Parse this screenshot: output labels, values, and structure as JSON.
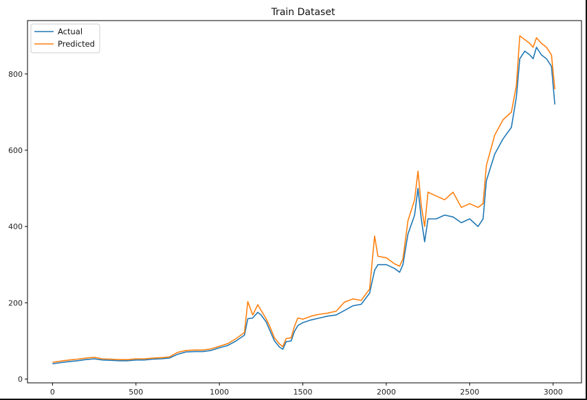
{
  "chart_data": {
    "type": "line",
    "title": "Train Dataset",
    "xlabel": "",
    "ylabel": "",
    "xlim": [
      -150,
      3170
    ],
    "ylim": [
      -10,
      940
    ],
    "xticks": [
      0,
      500,
      1000,
      1500,
      2000,
      2500,
      3000
    ],
    "yticks": [
      0,
      200,
      400,
      600,
      800
    ],
    "grid": false,
    "legend": {
      "placement": "top-left"
    },
    "series": [
      {
        "name": "Actual",
        "color": "#1f77b4",
        "x": [
          0,
          50,
          100,
          150,
          200,
          250,
          300,
          350,
          400,
          450,
          500,
          550,
          600,
          650,
          700,
          750,
          800,
          850,
          900,
          950,
          1000,
          1050,
          1100,
          1150,
          1170,
          1200,
          1230,
          1250,
          1280,
          1300,
          1330,
          1360,
          1380,
          1400,
          1430,
          1450,
          1470,
          1500,
          1550,
          1600,
          1650,
          1700,
          1750,
          1800,
          1850,
          1900,
          1930,
          1950,
          2000,
          2050,
          2080,
          2100,
          2130,
          2170,
          2190,
          2210,
          2230,
          2250,
          2300,
          2350,
          2400,
          2450,
          2500,
          2550,
          2580,
          2600,
          2650,
          2700,
          2750,
          2780,
          2800,
          2830,
          2860,
          2880,
          2900,
          2930,
          2960,
          2990,
          3010
        ],
        "values": [
          40,
          43,
          46,
          48,
          51,
          53,
          50,
          49,
          48,
          48,
          50,
          50,
          52,
          53,
          55,
          65,
          71,
          72,
          72,
          75,
          82,
          88,
          100,
          115,
          158,
          160,
          175,
          168,
          150,
          130,
          100,
          84,
          78,
          98,
          100,
          125,
          140,
          148,
          155,
          160,
          165,
          168,
          180,
          192,
          196,
          225,
          285,
          300,
          300,
          290,
          280,
          300,
          380,
          430,
          500,
          420,
          360,
          420,
          420,
          430,
          425,
          410,
          420,
          400,
          420,
          520,
          590,
          630,
          660,
          740,
          840,
          860,
          850,
          840,
          870,
          850,
          840,
          820,
          720
        ]
      },
      {
        "name": "Predicted",
        "color": "#ff7f0e",
        "x": [
          0,
          50,
          100,
          150,
          200,
          250,
          300,
          350,
          400,
          450,
          500,
          550,
          600,
          650,
          700,
          750,
          800,
          850,
          900,
          950,
          1000,
          1050,
          1100,
          1150,
          1170,
          1200,
          1230,
          1250,
          1280,
          1300,
          1330,
          1360,
          1380,
          1400,
          1430,
          1450,
          1470,
          1500,
          1550,
          1600,
          1650,
          1700,
          1750,
          1800,
          1850,
          1900,
          1930,
          1950,
          2000,
          2050,
          2080,
          2100,
          2130,
          2170,
          2190,
          2210,
          2230,
          2250,
          2300,
          2350,
          2400,
          2450,
          2500,
          2550,
          2580,
          2600,
          2650,
          2700,
          2750,
          2780,
          2800,
          2830,
          2860,
          2880,
          2900,
          2930,
          2960,
          2990,
          3010
        ],
        "values": [
          44,
          47,
          50,
          52,
          55,
          57,
          53,
          52,
          51,
          51,
          53,
          53,
          55,
          56,
          58,
          70,
          75,
          76,
          76,
          79,
          86,
          93,
          106,
          122,
          203,
          168,
          195,
          180,
          158,
          140,
          108,
          92,
          85,
          106,
          108,
          138,
          160,
          157,
          165,
          170,
          173,
          178,
          202,
          210,
          206,
          236,
          375,
          322,
          318,
          302,
          296,
          315,
          415,
          470,
          545,
          455,
          400,
          490,
          480,
          470,
          490,
          450,
          460,
          450,
          460,
          560,
          640,
          680,
          700,
          770,
          900,
          890,
          880,
          870,
          895,
          880,
          870,
          850,
          760
        ]
      }
    ]
  }
}
